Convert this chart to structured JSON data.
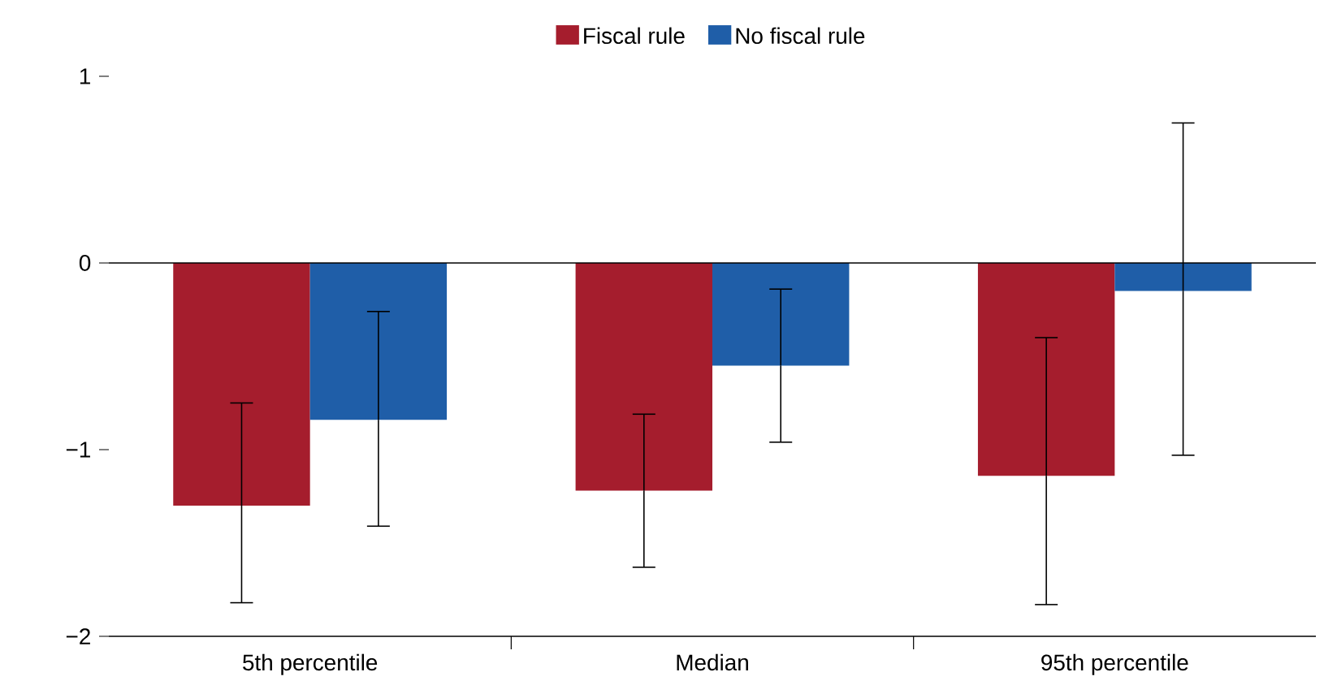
{
  "chart_data": {
    "type": "bar",
    "categories": [
      "5th percentile",
      "Median",
      "95th percentile"
    ],
    "series": [
      {
        "name": "Fiscal rule",
        "color": "#a51d2d",
        "values": [
          -1.3,
          -1.22,
          -1.14
        ],
        "errors": [
          [
            -1.82,
            -0.75
          ],
          [
            -1.63,
            -0.81
          ],
          [
            -1.83,
            -0.4
          ]
        ]
      },
      {
        "name": "No fiscal rule",
        "color": "#1f5ea8",
        "values": [
          -0.84,
          -0.55,
          -0.15
        ],
        "errors": [
          [
            -1.41,
            -0.26
          ],
          [
            -0.96,
            -0.14
          ],
          [
            -1.03,
            0.75
          ]
        ]
      }
    ],
    "ylim": [
      -2,
      1
    ],
    "yticks": [
      {
        "value": -2,
        "label": "−2"
      },
      {
        "value": -1,
        "label": "−1"
      },
      {
        "value": 0,
        "label": "0"
      },
      {
        "value": 1,
        "label": "1"
      }
    ],
    "ref_lines": [
      {
        "axis": "y",
        "value": 0,
        "color": "#000000"
      }
    ],
    "grid": false,
    "legend": "top"
  }
}
